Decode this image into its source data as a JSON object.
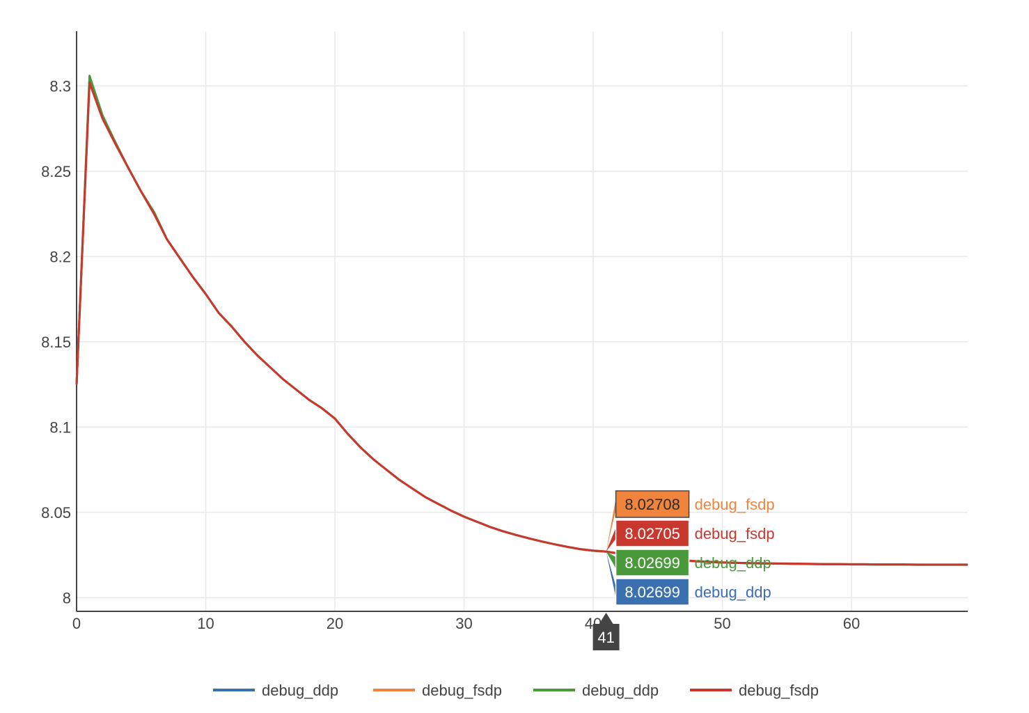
{
  "chart_data": {
    "type": "line",
    "title": "",
    "xlabel": "",
    "ylabel": "",
    "xlim": [
      0,
      69
    ],
    "ylim": [
      7.992,
      8.332
    ],
    "grid": true,
    "legend_position": "bottom",
    "x_ticks": [
      0,
      10,
      20,
      30,
      40,
      50,
      60
    ],
    "x_tick_labels": [
      "0",
      "10",
      "20",
      "30",
      "40",
      "50",
      "60"
    ],
    "y_ticks": [
      8,
      8.05,
      8.1,
      8.15,
      8.2,
      8.25,
      8.3
    ],
    "y_tick_labels": [
      "8",
      "8.05",
      "8.1",
      "8.15",
      "8.2",
      "8.25",
      "8.3"
    ],
    "x": [
      0,
      1,
      2,
      3,
      4,
      5,
      6,
      7,
      8,
      9,
      10,
      11,
      12,
      13,
      14,
      15,
      16,
      17,
      18,
      19,
      20,
      21,
      22,
      23,
      24,
      25,
      26,
      27,
      28,
      29,
      30,
      31,
      32,
      33,
      34,
      35,
      36,
      37,
      38,
      39,
      40,
      41,
      42,
      43,
      44,
      45,
      46,
      47,
      48,
      49,
      50,
      51,
      52,
      53,
      54,
      55,
      56,
      57,
      58,
      59,
      60,
      61,
      62,
      63,
      64,
      65,
      66,
      67,
      68,
      69
    ],
    "series": [
      {
        "name": "debug_ddp",
        "color": "#3a6fb0",
        "values": [
          8.125,
          8.304,
          8.282,
          8.267,
          8.252,
          8.238,
          8.226,
          8.21,
          8.199,
          8.188,
          8.178,
          8.167,
          8.159,
          8.15,
          8.142,
          8.135,
          8.128,
          8.122,
          8.116,
          8.111,
          8.105,
          8.096,
          8.088,
          8.081,
          8.075,
          8.069,
          8.064,
          8.059,
          8.055,
          8.051,
          8.0475,
          8.0445,
          8.0415,
          8.039,
          8.0368,
          8.0348,
          8.033,
          8.0313,
          8.0298,
          8.0284,
          8.0275,
          8.02699,
          8.0258,
          8.0248,
          8.0239,
          8.0231,
          8.0224,
          8.0218,
          8.0213,
          8.0209,
          8.0206,
          8.0204,
          8.0202,
          8.0201,
          8.02,
          8.0199,
          8.0198,
          8.0197,
          8.0196,
          8.0196,
          8.0195,
          8.0195,
          8.0194,
          8.0194,
          8.0194,
          8.0193,
          8.0193,
          8.0193,
          8.0193,
          8.0193
        ]
      },
      {
        "name": "debug_fsdp",
        "color": "#f0843c",
        "values": [
          8.125,
          8.302,
          8.281,
          8.266,
          8.252,
          8.238,
          8.225,
          8.21,
          8.199,
          8.188,
          8.178,
          8.167,
          8.159,
          8.15,
          8.142,
          8.135,
          8.128,
          8.122,
          8.116,
          8.111,
          8.105,
          8.096,
          8.088,
          8.081,
          8.075,
          8.069,
          8.064,
          8.059,
          8.055,
          8.051,
          8.0475,
          8.0445,
          8.0415,
          8.039,
          8.0368,
          8.0348,
          8.033,
          8.0313,
          8.0298,
          8.0285,
          8.0276,
          8.02708,
          8.0259,
          8.0249,
          8.024,
          8.0232,
          8.0225,
          8.0219,
          8.0214,
          8.021,
          8.0207,
          8.0205,
          8.0203,
          8.0202,
          8.0201,
          8.02,
          8.0199,
          8.0198,
          8.0197,
          8.0197,
          8.0196,
          8.0196,
          8.0195,
          8.0195,
          8.0195,
          8.0194,
          8.0194,
          8.0194,
          8.0194,
          8.0194
        ]
      },
      {
        "name": "debug_ddp",
        "color": "#4a9a3c",
        "values": [
          8.125,
          8.306,
          8.283,
          8.267,
          8.252,
          8.238,
          8.226,
          8.21,
          8.199,
          8.188,
          8.178,
          8.167,
          8.159,
          8.15,
          8.142,
          8.135,
          8.128,
          8.122,
          8.116,
          8.111,
          8.105,
          8.096,
          8.088,
          8.081,
          8.075,
          8.069,
          8.064,
          8.059,
          8.055,
          8.051,
          8.0475,
          8.0445,
          8.0415,
          8.039,
          8.0368,
          8.0348,
          8.033,
          8.0313,
          8.0298,
          8.0284,
          8.0275,
          8.02699,
          8.0258,
          8.0248,
          8.0239,
          8.0231,
          8.0224,
          8.0218,
          8.0213,
          8.0209,
          8.0206,
          8.0204,
          8.0202,
          8.0201,
          8.02,
          8.0199,
          8.0198,
          8.0197,
          8.0196,
          8.0196,
          8.0195,
          8.0195,
          8.0194,
          8.0194,
          8.0194,
          8.0193,
          8.0193,
          8.0193,
          8.0193,
          8.0193
        ]
      },
      {
        "name": "debug_fsdp",
        "color": "#c8382f",
        "values": [
          8.125,
          8.302,
          8.281,
          8.266,
          8.252,
          8.238,
          8.225,
          8.21,
          8.199,
          8.188,
          8.178,
          8.167,
          8.159,
          8.15,
          8.142,
          8.135,
          8.128,
          8.122,
          8.116,
          8.111,
          8.105,
          8.096,
          8.088,
          8.081,
          8.075,
          8.069,
          8.064,
          8.059,
          8.055,
          8.051,
          8.0475,
          8.0445,
          8.0415,
          8.039,
          8.0368,
          8.0348,
          8.033,
          8.0313,
          8.0298,
          8.0285,
          8.0276,
          8.02705,
          8.0259,
          8.0249,
          8.024,
          8.0232,
          8.0225,
          8.0219,
          8.0214,
          8.021,
          8.0207,
          8.0205,
          8.0203,
          8.0202,
          8.0201,
          8.02,
          8.0199,
          8.0198,
          8.0197,
          8.0197,
          8.0196,
          8.0196,
          8.0195,
          8.0195,
          8.0195,
          8.0194,
          8.0194,
          8.0194,
          8.0194,
          8.0194
        ]
      }
    ],
    "hover": {
      "x": 41,
      "x_label": "41",
      "labels": [
        {
          "series_index": 1,
          "value": 8.02708,
          "value_text": "8.02708",
          "name": "debug_fsdp"
        },
        {
          "series_index": 3,
          "value": 8.02705,
          "value_text": "8.02705",
          "name": "debug_fsdp"
        },
        {
          "series_index": 2,
          "value": 8.02699,
          "value_text": "8.02699",
          "name": "debug_ddp"
        },
        {
          "series_index": 0,
          "value": 8.02699,
          "value_text": "8.02699",
          "name": "debug_ddp"
        }
      ]
    },
    "legend": [
      {
        "name": "debug_ddp",
        "color": "#3a6fb0"
      },
      {
        "name": "debug_fsdp",
        "color": "#f0843c"
      },
      {
        "name": "debug_ddp",
        "color": "#4a9a3c"
      },
      {
        "name": "debug_fsdp",
        "color": "#c8382f"
      }
    ],
    "colors": {
      "grid": "#e8e8e8",
      "axis": "#444444",
      "hover_x_bg": "#444444"
    }
  }
}
